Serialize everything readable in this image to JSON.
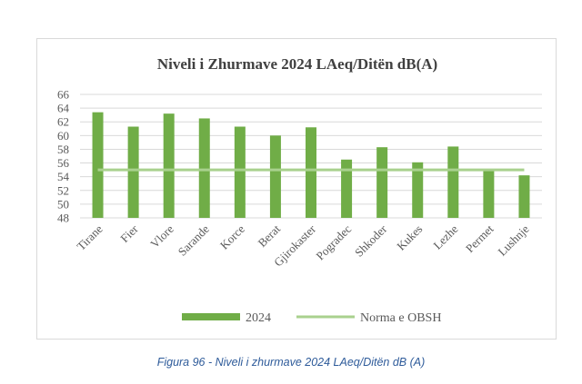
{
  "caption": "Figura 96 - Niveli i zhurmave 2024 LAeq/Ditën dB (A)",
  "chart_data": {
    "type": "bar",
    "title": "Niveli i Zhurmave 2024 LAeq/Ditën dB(A)",
    "xlabel": "",
    "ylabel": "",
    "categories": [
      "Tirane",
      "Fier",
      "Vlore",
      "Sarande",
      "Korce",
      "Berat",
      "Gjirokaster",
      "Pogradec",
      "Shkoder",
      "Kukes",
      "Lezhe",
      "Permet",
      "Lushnje"
    ],
    "series": [
      {
        "name": "2024",
        "type": "bar",
        "color": "#70ad47",
        "values": [
          63.4,
          61.3,
          63.2,
          62.5,
          61.3,
          60.0,
          61.2,
          56.5,
          58.3,
          56.1,
          58.4,
          54.9,
          54.2
        ]
      },
      {
        "name": "Norma e OBSH",
        "type": "line",
        "color": "#a9d18e",
        "values": [
          55,
          55,
          55,
          55,
          55,
          55,
          55,
          55,
          55,
          55,
          55,
          55,
          55
        ]
      }
    ],
    "y_ticks": [
      "48",
      "50",
      "52",
      "54",
      "56",
      "58",
      "60",
      "62",
      "64",
      "66"
    ],
    "ylim": [
      48,
      66
    ],
    "grid": true,
    "legend": "bottom"
  }
}
